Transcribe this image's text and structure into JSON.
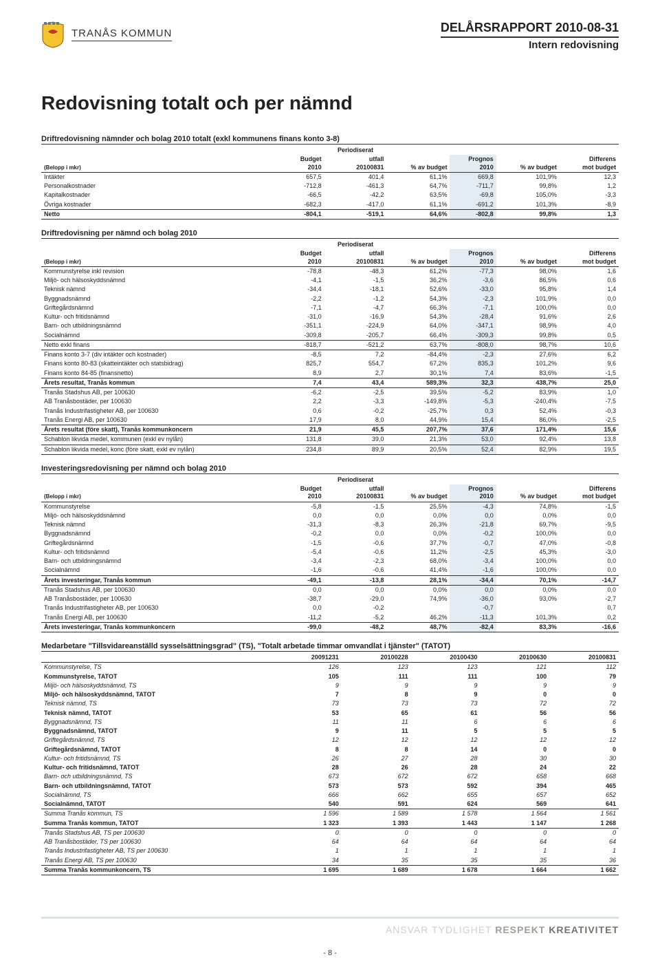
{
  "header": {
    "kommun": "TRANÅS KOMMUN",
    "report": "DELÅRSRAPPORT 2010-08-31",
    "subtitle": "Intern redovisning"
  },
  "main_title": "Redovisning totalt och per nämnd",
  "table1": {
    "title": "Driftredovisning nämnder och bolag 2010 totalt (exkl kommunens finans konto 3-8)",
    "belopp": "(Belopp i mkr)",
    "super": "Periodiserat",
    "cols": [
      "Budget 2010",
      "utfall 20100831",
      "% av budget",
      "Prognos 2010",
      "% av budget",
      "Differens mot budget"
    ],
    "rows": [
      {
        "l": "Intäkter",
        "c": [
          "657,5",
          "401,4",
          "61,1%",
          "669,8",
          "101,9%",
          "12,3"
        ]
      },
      {
        "l": "Personalkostnader",
        "c": [
          "-712,8",
          "-461,3",
          "64,7%",
          "-711,7",
          "99,8%",
          "1,2"
        ]
      },
      {
        "l": "Kapitalkostnader",
        "c": [
          "-66,5",
          "-42,2",
          "63,5%",
          "-69,8",
          "105,0%",
          "-3,3"
        ]
      },
      {
        "l": "Övriga kostnader",
        "c": [
          "-682,3",
          "-417,0",
          "61,1%",
          "-691,2",
          "101,3%",
          "-8,9"
        ]
      }
    ],
    "netto": {
      "l": "Netto",
      "c": [
        "-804,1",
        "-519,1",
        "64,6%",
        "-802,8",
        "99,8%",
        "1,3"
      ]
    }
  },
  "table2": {
    "title": "Driftredovisning per nämnd och bolag 2010",
    "belopp": "(Belopp i mkr)",
    "super": "Periodiserat",
    "cols": [
      "Budget 2010",
      "utfall 20100831",
      "% av budget",
      "Prognos 2010",
      "% av budget",
      "Differens mot budget"
    ],
    "block_a": [
      {
        "l": "Kommunstyrelse inkl revision",
        "c": [
          "-78,8",
          "-48,3",
          "61,2%",
          "-77,3",
          "98,0%",
          "1,6"
        ]
      },
      {
        "l": "Miljö- och hälsoskyddsnämnd",
        "c": [
          "-4,1",
          "-1,5",
          "36,2%",
          "-3,6",
          "86,5%",
          "0,6"
        ]
      },
      {
        "l": "Teknisk nämnd",
        "c": [
          "-34,4",
          "-18,1",
          "52,6%",
          "-33,0",
          "95,8%",
          "1,4"
        ]
      },
      {
        "l": "Byggnadsnämnd",
        "c": [
          "-2,2",
          "-1,2",
          "54,3%",
          "-2,3",
          "101,9%",
          "0,0"
        ]
      },
      {
        "l": "Griftegårdsnämnd",
        "c": [
          "-7,1",
          "-4,7",
          "66,3%",
          "-7,1",
          "100,0%",
          "0,0"
        ]
      },
      {
        "l": "Kultur- och fritidsnämnd",
        "c": [
          "-31,0",
          "-16,9",
          "54,3%",
          "-28,4",
          "91,6%",
          "2,6"
        ]
      },
      {
        "l": "Barn- och utbildningsnämnd",
        "c": [
          "-351,1",
          "-224,9",
          "64,0%",
          "-347,1",
          "98,9%",
          "4,0"
        ]
      },
      {
        "l": "Socialnämnd",
        "c": [
          "-309,8",
          "-205,7",
          "66,4%",
          "-309,3",
          "99,8%",
          "0,5"
        ]
      }
    ],
    "netto_exkl": {
      "l": "Netto exkl finans",
      "c": [
        "-818,7",
        "-521,2",
        "63,7%",
        "-808,0",
        "98,7%",
        "10,6"
      ]
    },
    "block_b": [
      {
        "l": "Finans konto 3-7 (div intäkter och kostnader)",
        "c": [
          "-8,5",
          "7,2",
          "-84,4%",
          "-2,3",
          "27,6%",
          "6,2"
        ]
      },
      {
        "l": "Finans konto 80-83 (skatteintäkter och statsbidrag)",
        "c": [
          "825,7",
          "554,7",
          "67,2%",
          "835,3",
          "101,2%",
          "9,6"
        ]
      },
      {
        "l": "Finans konto 84-85 (finansnetto)",
        "c": [
          "8,9",
          "2,7",
          "30,1%",
          "7,4",
          "83,6%",
          "-1,5"
        ]
      }
    ],
    "arets_res": {
      "l": "Årets resultat, Tranås kommun",
      "c": [
        "7,4",
        "43,4",
        "589,3%",
        "32,3",
        "438,7%",
        "25,0"
      ]
    },
    "block_c": [
      {
        "l": "Tranås Stadshus AB, per 100630",
        "c": [
          "-6,2",
          "-2,5",
          "39,5%",
          "-5,2",
          "83,9%",
          "1,0"
        ]
      },
      {
        "l": "AB Tranåsbostäder, per 100630",
        "c": [
          "2,2",
          "-3,3",
          "-149,8%",
          "-5,3",
          "-240,4%",
          "-7,5"
        ]
      },
      {
        "l": "Tranås Industrifastigheter AB, per 100630",
        "c": [
          "0,6",
          "-0,2",
          "-25,7%",
          "0,3",
          "52,4%",
          "-0,3"
        ]
      },
      {
        "l": "Tranås Energi AB, per 100630",
        "c": [
          "17,9",
          "8,0",
          "44,9%",
          "15,4",
          "86,0%",
          "-2,5"
        ]
      }
    ],
    "arets_res_konc": {
      "l": "Årets resultat (före skatt), Tranås kommunkoncern",
      "c": [
        "21,9",
        "45,5",
        "207,7%",
        "37,6",
        "171,4%",
        "15,6"
      ]
    },
    "schablon": [
      {
        "l": "Schablon likvida medel, kommunen (exkl ev nylån)",
        "c": [
          "131,8",
          "39,0",
          "21,3%",
          "53,0",
          "92,4%",
          "13,8"
        ]
      },
      {
        "l": "Schablon likvida medel, konc (före skatt, exkl ev nylån)",
        "c": [
          "234,8",
          "89,9",
          "20,5%",
          "52,4",
          "82,9%",
          "19,5"
        ]
      }
    ]
  },
  "table3": {
    "title": "Investeringsredovisning per nämnd och bolag 2010",
    "belopp": "(Belopp i mkr)",
    "super": "Periodiserat",
    "cols": [
      "Budget 2010",
      "utfall 20100831",
      "% av budget",
      "Prognos 2010",
      "% av budget",
      "Differens mot budget"
    ],
    "rows": [
      {
        "l": "Kommunstyrelse",
        "c": [
          "-5,8",
          "-1,5",
          "25,5%",
          "-4,3",
          "74,8%",
          "-1,5"
        ]
      },
      {
        "l": "Miljö- och hälsoskyddsnämnd",
        "c": [
          "0,0",
          "0,0",
          "0,0%",
          "0,0",
          "0,0%",
          "0,0"
        ]
      },
      {
        "l": "Teknisk nämnd",
        "c": [
          "-31,3",
          "-8,3",
          "26,3%",
          "-21,8",
          "69,7%",
          "-9,5"
        ]
      },
      {
        "l": "Byggnadsnämnd",
        "c": [
          "-0,2",
          "0,0",
          "0,0%",
          "-0,2",
          "100,0%",
          "0,0"
        ]
      },
      {
        "l": "Griftegårdsnämnd",
        "c": [
          "-1,5",
          "-0,6",
          "37,7%",
          "-0,7",
          "47,0%",
          "-0,8"
        ]
      },
      {
        "l": "Kultur- och fritidsnämnd",
        "c": [
          "-5,4",
          "-0,6",
          "11,2%",
          "-2,5",
          "45,3%",
          "-3,0"
        ]
      },
      {
        "l": "Barn- och utbildningsnämnd",
        "c": [
          "-3,4",
          "-2,3",
          "68,0%",
          "-3,4",
          "100,0%",
          "0,0"
        ]
      },
      {
        "l": "Socialnämnd",
        "c": [
          "-1,6",
          "-0,6",
          "41,4%",
          "-1,6",
          "100,0%",
          "0,0"
        ]
      }
    ],
    "arets_inv": {
      "l": "Årets investeringar, Tranås kommun",
      "c": [
        "-49,1",
        "-13,8",
        "28,1%",
        "-34,4",
        "70,1%",
        "-14,7"
      ]
    },
    "block_c": [
      {
        "l": "Tranås Stadshus AB, per 100630",
        "c": [
          "0,0",
          "0,0",
          "0,0%",
          "0,0",
          "0,0%",
          "0,0"
        ]
      },
      {
        "l": "AB Tranåsbostäder, per 100630",
        "c": [
          "-38,7",
          "-29,0",
          "74,9%",
          "-36,0",
          "93,0%",
          "-2,7"
        ]
      },
      {
        "l": "Tranås Industrifastigheter AB, per 100630",
        "c": [
          "0,0",
          "-0,2",
          "",
          "-0,7",
          "",
          "0,7"
        ]
      },
      {
        "l": "Tranås Energi AB, per 100630",
        "c": [
          "-11,2",
          "-5,2",
          "46,2%",
          "-11,3",
          "101,3%",
          "0,2"
        ]
      }
    ],
    "arets_inv_konc": {
      "l": "Årets investeringar, Tranås kommunkoncern",
      "c": [
        "-99,0",
        "-48,2",
        "48,7%",
        "-82,4",
        "83,3%",
        "-16,6"
      ]
    }
  },
  "table4": {
    "title": "Medarbetare  \"Tillsvidareanställd sysselsättningsgrad\" (TS), \"Totalt arbetade timmar omvandlat i tjänster\" (TATOT)",
    "cols": [
      "20091231",
      "20100228",
      "20100430",
      "20100630",
      "20100831"
    ],
    "rows": [
      {
        "l": "Kommunstyrelse, TS",
        "it": true,
        "c": [
          "126",
          "123",
          "123",
          "121",
          "112"
        ]
      },
      {
        "l": "Kommunstyrelse, TATOT",
        "b": true,
        "c": [
          "105",
          "111",
          "111",
          "100",
          "79"
        ]
      },
      {
        "l": "Miljö- och hälsoskyddsnämnd, TS",
        "it": true,
        "c": [
          "9",
          "9",
          "9",
          "9",
          "9"
        ]
      },
      {
        "l": "Miljö- och hälsoskyddsnämnd, TATOT",
        "b": true,
        "c": [
          "7",
          "8",
          "9",
          "0",
          "0"
        ]
      },
      {
        "l": "Teknisk nämnd, TS",
        "it": true,
        "c": [
          "73",
          "73",
          "73",
          "72",
          "72"
        ]
      },
      {
        "l": "Teknisk nämnd, TATOT",
        "b": true,
        "c": [
          "53",
          "65",
          "61",
          "56",
          "56"
        ]
      },
      {
        "l": "Byggnadsnämnd, TS",
        "it": true,
        "c": [
          "11",
          "11",
          "6",
          "6",
          "6"
        ]
      },
      {
        "l": "Byggnadsnämnd, TATOT",
        "b": true,
        "c": [
          "9",
          "11",
          "5",
          "5",
          "5"
        ]
      },
      {
        "l": "Griftegårdsnämnd, TS",
        "it": true,
        "c": [
          "12",
          "12",
          "12",
          "12",
          "12"
        ]
      },
      {
        "l": "Griftegårdsnämnd, TATOT",
        "b": true,
        "c": [
          "8",
          "8",
          "14",
          "0",
          "0"
        ]
      },
      {
        "l": "Kultur- och fritidsnämnd, TS",
        "it": true,
        "c": [
          "26",
          "27",
          "28",
          "30",
          "30"
        ]
      },
      {
        "l": "Kultur- och fritidsnämnd,  TATOT",
        "b": true,
        "c": [
          "28",
          "26",
          "28",
          "24",
          "22"
        ]
      },
      {
        "l": "Barn- och utbildningsnämnd, TS",
        "it": true,
        "c": [
          "673",
          "672",
          "672",
          "658",
          "668"
        ]
      },
      {
        "l": "Barn- och utbildningsnämnd, TATOT",
        "b": true,
        "c": [
          "573",
          "573",
          "592",
          "394",
          "465"
        ]
      },
      {
        "l": "Socialnämnd, TS",
        "it": true,
        "c": [
          "666",
          "662",
          "655",
          "657",
          "652"
        ]
      },
      {
        "l": "Socialnämnd, TATOT",
        "b": true,
        "bot": true,
        "c": [
          "540",
          "591",
          "624",
          "569",
          "641"
        ]
      },
      {
        "l": "Summa Tranås kommun, TS",
        "it": true,
        "c": [
          "1 596",
          "1 589",
          "1 578",
          "1 564",
          "1 561"
        ]
      },
      {
        "l": "Summa Tranås kommun, TATOT",
        "b": true,
        "bot": true,
        "c": [
          "1 323",
          "1 393",
          "1 443",
          "1 147",
          "1 268"
        ]
      },
      {
        "l": "Tranås Stadshus AB, TS per 100630",
        "it": true,
        "c": [
          "0",
          "0",
          "0",
          "0",
          "0"
        ]
      },
      {
        "l": "AB Tranåsbostäder, TS per 100630",
        "it": true,
        "c": [
          "64",
          "64",
          "64",
          "64",
          "64"
        ]
      },
      {
        "l": "Tranås Industrifastigheter AB, TS per 100630",
        "it": true,
        "c": [
          "1",
          "1",
          "1",
          "1",
          "1"
        ]
      },
      {
        "l": "Tranås Energi AB, TS per 100630",
        "it": true,
        "bot": true,
        "c": [
          "34",
          "35",
          "35",
          "35",
          "36"
        ]
      },
      {
        "l": "Summa Tranås kommunkoncern, TS",
        "b": true,
        "bot": true,
        "c": [
          "1 695",
          "1 689",
          "1 678",
          "1 664",
          "1 662"
        ]
      }
    ]
  },
  "footer": {
    "words": [
      "ANSVAR",
      "TYDLIGHET",
      "RESPEKT",
      "KREATIVITET"
    ],
    "page": "- 8 -"
  }
}
